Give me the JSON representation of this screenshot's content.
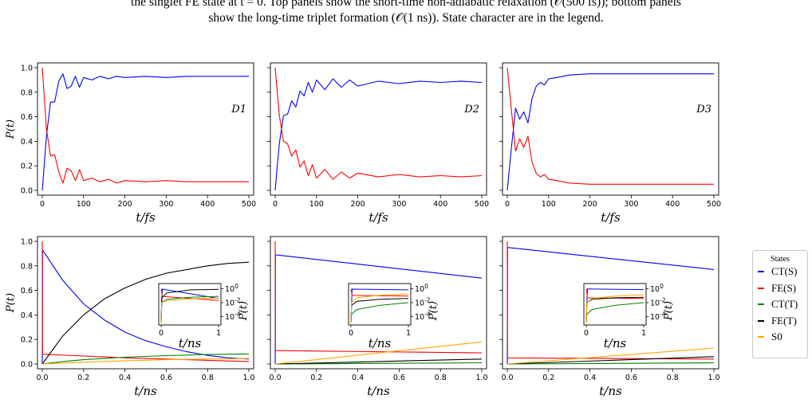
{
  "caption": {
    "line1": "the singlet FE state at t = 0. Top panels show the short-time non-adiabatic relaxation (𝒪(500 fs)); bottom panels",
    "line2": "show the long-time triplet formation (𝒪(1 ns)). State character are in the legend."
  },
  "legend": {
    "title": "States",
    "items": [
      {
        "label": "CT(S)",
        "color": "#0000ff"
      },
      {
        "label": "FE(S)",
        "color": "#ff0000"
      },
      {
        "label": "CT(T)",
        "color": "#008000"
      },
      {
        "label": "FE(T)",
        "color": "#000000"
      },
      {
        "label": "S0",
        "color": "#ffa500"
      }
    ]
  },
  "chart_data": [
    {
      "type": "line",
      "panel": "top",
      "label": "D1",
      "xlabel": "t/fs",
      "ylabel": "P(t)",
      "xlim": [
        0,
        500
      ],
      "ylim": [
        0.0,
        1.0
      ],
      "xticks": [
        0,
        100,
        200,
        300,
        400,
        500
      ],
      "yticks": [
        0.0,
        0.2,
        0.4,
        0.6,
        0.8,
        1.0
      ],
      "series": [
        {
          "color": "#0000ff",
          "x": [
            0,
            10,
            20,
            30,
            40,
            50,
            60,
            70,
            80,
            90,
            100,
            120,
            140,
            160,
            180,
            200,
            250,
            300,
            350,
            400,
            450,
            500
          ],
          "y": [
            0.0,
            0.44,
            0.72,
            0.72,
            0.89,
            0.95,
            0.83,
            0.85,
            0.93,
            0.84,
            0.92,
            0.9,
            0.93,
            0.91,
            0.93,
            0.92,
            0.93,
            0.92,
            0.93,
            0.93,
            0.93,
            0.93
          ]
        },
        {
          "color": "#ff0000",
          "x": [
            0,
            10,
            20,
            30,
            40,
            50,
            60,
            70,
            80,
            90,
            100,
            120,
            140,
            160,
            180,
            200,
            250,
            300,
            350,
            400,
            450,
            500
          ],
          "y": [
            1.0,
            0.5,
            0.28,
            0.29,
            0.15,
            0.06,
            0.18,
            0.16,
            0.08,
            0.17,
            0.08,
            0.1,
            0.07,
            0.09,
            0.06,
            0.08,
            0.07,
            0.08,
            0.07,
            0.07,
            0.07,
            0.07
          ]
        }
      ]
    },
    {
      "type": "line",
      "panel": "top",
      "label": "D2",
      "xlabel": "t/fs",
      "ylabel": "",
      "xlim": [
        0,
        500
      ],
      "ylim": [
        0.0,
        1.0
      ],
      "xticks": [
        0,
        100,
        200,
        300,
        400,
        500
      ],
      "series": [
        {
          "color": "#0000ff",
          "x": [
            0,
            5,
            10,
            20,
            30,
            40,
            50,
            60,
            70,
            80,
            90,
            100,
            120,
            140,
            160,
            180,
            200,
            250,
            300,
            350,
            400,
            450,
            500
          ],
          "y": [
            0.0,
            0.2,
            0.38,
            0.61,
            0.62,
            0.73,
            0.68,
            0.81,
            0.77,
            0.88,
            0.8,
            0.9,
            0.82,
            0.91,
            0.84,
            0.9,
            0.85,
            0.89,
            0.87,
            0.89,
            0.88,
            0.89,
            0.88
          ]
        },
        {
          "color": "#ff0000",
          "x": [
            0,
            5,
            10,
            20,
            30,
            40,
            50,
            60,
            70,
            80,
            90,
            100,
            120,
            140,
            160,
            180,
            200,
            250,
            300,
            350,
            400,
            450,
            500
          ],
          "y": [
            1.0,
            0.8,
            0.61,
            0.4,
            0.38,
            0.28,
            0.33,
            0.19,
            0.24,
            0.12,
            0.21,
            0.1,
            0.17,
            0.09,
            0.15,
            0.1,
            0.14,
            0.11,
            0.13,
            0.11,
            0.12,
            0.11,
            0.12
          ]
        }
      ]
    },
    {
      "type": "line",
      "panel": "top",
      "label": "D3",
      "xlabel": "t/fs",
      "ylabel": "",
      "xlim": [
        0,
        500
      ],
      "ylim": [
        0.0,
        1.0
      ],
      "xticks": [
        0,
        100,
        200,
        300,
        400,
        500
      ],
      "series": [
        {
          "color": "#0000ff",
          "x": [
            0,
            10,
            20,
            30,
            40,
            50,
            60,
            70,
            80,
            90,
            100,
            120,
            150,
            200,
            250,
            300,
            400,
            500
          ],
          "y": [
            0.0,
            0.35,
            0.67,
            0.58,
            0.64,
            0.55,
            0.75,
            0.85,
            0.88,
            0.86,
            0.91,
            0.92,
            0.94,
            0.95,
            0.95,
            0.95,
            0.95,
            0.95
          ]
        },
        {
          "color": "#ff0000",
          "x": [
            0,
            10,
            20,
            30,
            40,
            50,
            60,
            70,
            80,
            90,
            100,
            120,
            150,
            200,
            250,
            300,
            400,
            500
          ],
          "y": [
            1.0,
            0.65,
            0.32,
            0.42,
            0.35,
            0.44,
            0.23,
            0.14,
            0.11,
            0.13,
            0.09,
            0.08,
            0.06,
            0.05,
            0.05,
            0.05,
            0.05,
            0.05
          ]
        }
      ]
    },
    {
      "type": "line",
      "panel": "bottom",
      "label": "",
      "xlabel": "t/ns",
      "ylabel": "P(t)",
      "xlim": [
        0,
        1.0
      ],
      "ylim": [
        0.0,
        1.0
      ],
      "xticks": [
        0.0,
        0.2,
        0.4,
        0.6,
        0.8,
        1.0
      ],
      "yticks": [
        0.0,
        0.2,
        0.4,
        0.6,
        0.8,
        1.0
      ],
      "series": [
        {
          "color": "#0000ff",
          "x": [
            0,
            0.001,
            0.1,
            0.2,
            0.3,
            0.4,
            0.5,
            0.6,
            0.7,
            0.8,
            0.9,
            1.0
          ],
          "y": [
            0.0,
            0.93,
            0.68,
            0.49,
            0.36,
            0.26,
            0.19,
            0.14,
            0.1,
            0.07,
            0.05,
            0.04
          ]
        },
        {
          "color": "#ff0000",
          "x": [
            0,
            0.001,
            0.2,
            0.4,
            0.6,
            0.8,
            1.0
          ],
          "y": [
            1.0,
            0.08,
            0.065,
            0.05,
            0.04,
            0.03,
            0.02
          ]
        },
        {
          "color": "#008000",
          "x": [
            0,
            0.1,
            0.2,
            0.3,
            0.4,
            0.5,
            0.6,
            0.7,
            0.8,
            0.9,
            1.0
          ],
          "y": [
            0.0,
            0.02,
            0.035,
            0.045,
            0.055,
            0.062,
            0.068,
            0.073,
            0.077,
            0.08,
            0.082
          ]
        },
        {
          "color": "#000000",
          "x": [
            0,
            0.1,
            0.2,
            0.3,
            0.4,
            0.5,
            0.6,
            0.7,
            0.8,
            0.9,
            1.0
          ],
          "y": [
            0.0,
            0.23,
            0.4,
            0.53,
            0.62,
            0.69,
            0.74,
            0.77,
            0.8,
            0.82,
            0.83
          ]
        },
        {
          "color": "#ffa500",
          "x": [
            0,
            0.2,
            0.4,
            0.6,
            0.8,
            1.0
          ],
          "y": [
            0.0,
            0.015,
            0.025,
            0.035,
            0.04,
            0.045
          ]
        }
      ],
      "inset": {
        "type": "line",
        "scale": "log",
        "xlabel": "t/ns",
        "ylabel": "P(t)",
        "xticks": [
          0,
          1
        ],
        "yticks": [
          "10^0",
          "10^-2",
          "10^-4"
        ],
        "series": [
          {
            "color": "#0000ff",
            "x": [
              0,
              0.02,
              0.5,
              1.0
            ],
            "y": [
              1e-05,
              0.9,
              0.2,
              0.04
            ]
          },
          {
            "color": "#ff0000",
            "x": [
              0,
              0.02,
              0.5,
              1.0
            ],
            "y": [
              1.0,
              0.08,
              0.04,
              0.02
            ]
          },
          {
            "color": "#008000",
            "x": [
              0,
              0.01,
              0.1,
              0.5,
              1.0
            ],
            "y": [
              1e-05,
              0.01,
              0.03,
              0.06,
              0.08
            ]
          },
          {
            "color": "#000000",
            "x": [
              0,
              0.01,
              0.1,
              0.5,
              1.0
            ],
            "y": [
              1e-05,
              0.05,
              0.25,
              0.69,
              0.83
            ]
          },
          {
            "color": "#ffa500",
            "x": [
              0,
              0.01,
              0.1,
              0.5,
              1.0
            ],
            "y": [
              1e-05,
              0.01,
              0.02,
              0.035,
              0.045
            ]
          }
        ]
      }
    },
    {
      "type": "line",
      "panel": "bottom",
      "label": "",
      "xlabel": "t/ns",
      "ylabel": "",
      "xlim": [
        0,
        1.0
      ],
      "ylim": [
        0.0,
        1.0
      ],
      "xticks": [
        0.0,
        0.2,
        0.4,
        0.6,
        0.8,
        1.0
      ],
      "series": [
        {
          "color": "#0000ff",
          "x": [
            0,
            0.001,
            1.0
          ],
          "y": [
            0.0,
            0.89,
            0.7
          ]
        },
        {
          "color": "#ff0000",
          "x": [
            0,
            0.001,
            1.0
          ],
          "y": [
            1.0,
            0.11,
            0.09
          ]
        },
        {
          "color": "#008000",
          "x": [
            0,
            1.0
          ],
          "y": [
            0.0,
            0.01
          ]
        },
        {
          "color": "#000000",
          "x": [
            0,
            1.0
          ],
          "y": [
            0.0,
            0.04
          ]
        },
        {
          "color": "#ffa500",
          "x": [
            0,
            1.0
          ],
          "y": [
            0.0,
            0.18
          ]
        }
      ],
      "inset": {
        "type": "line",
        "scale": "log",
        "xlabel": "t/ns",
        "ylabel": "P(t)",
        "xticks": [
          0,
          1
        ],
        "yticks": [
          "10^0",
          "10^-2",
          "10^-4"
        ],
        "series": [
          {
            "color": "#0000ff",
            "x": [
              0,
              0.02,
              1.0
            ],
            "y": [
              1e-05,
              0.89,
              0.7
            ]
          },
          {
            "color": "#ff0000",
            "x": [
              0,
              0.02,
              1.0
            ],
            "y": [
              1.0,
              0.11,
              0.09
            ]
          },
          {
            "color": "#008000",
            "x": [
              0,
              0.01,
              0.1,
              0.5,
              1.0
            ],
            "y": [
              1e-05,
              0.0002,
              0.001,
              0.004,
              0.01
            ]
          },
          {
            "color": "#000000",
            "x": [
              0,
              0.01,
              0.1,
              0.5,
              1.0
            ],
            "y": [
              1e-05,
              0.004,
              0.015,
              0.03,
              0.04
            ]
          },
          {
            "color": "#ffa500",
            "x": [
              0,
              0.01,
              0.1,
              0.5,
              1.0
            ],
            "y": [
              1e-05,
              0.01,
              0.05,
              0.12,
              0.18
            ]
          }
        ]
      }
    },
    {
      "type": "line",
      "panel": "bottom",
      "label": "",
      "xlabel": "t/ns",
      "ylabel": "",
      "xlim": [
        0,
        1.0
      ],
      "ylim": [
        0.0,
        1.0
      ],
      "xticks": [
        0.0,
        0.2,
        0.4,
        0.6,
        0.8,
        1.0
      ],
      "series": [
        {
          "color": "#0000ff",
          "x": [
            0,
            0.001,
            1.0
          ],
          "y": [
            0.0,
            0.95,
            0.77
          ]
        },
        {
          "color": "#ff0000",
          "x": [
            0,
            0.001,
            1.0
          ],
          "y": [
            1.0,
            0.05,
            0.04
          ]
        },
        {
          "color": "#008000",
          "x": [
            0,
            1.0
          ],
          "y": [
            0.0,
            0.01
          ]
        },
        {
          "color": "#000000",
          "x": [
            0,
            1.0
          ],
          "y": [
            0.0,
            0.06
          ]
        },
        {
          "color": "#ffa500",
          "x": [
            0,
            1.0
          ],
          "y": [
            0.0,
            0.13
          ]
        }
      ],
      "inset": {
        "type": "line",
        "scale": "log",
        "xlabel": "t/ns",
        "ylabel": "P(t)",
        "xticks": [
          0,
          1
        ],
        "yticks": [
          "10^0",
          "10^-2",
          "10^-4"
        ],
        "series": [
          {
            "color": "#0000ff",
            "x": [
              0,
              0.02,
              1.0
            ],
            "y": [
              1e-05,
              0.95,
              0.77
            ]
          },
          {
            "color": "#ff0000",
            "x": [
              0,
              0.02,
              1.0
            ],
            "y": [
              1.0,
              0.05,
              0.04
            ]
          },
          {
            "color": "#008000",
            "x": [
              0,
              0.01,
              0.1,
              0.5,
              1.0
            ],
            "y": [
              1e-05,
              0.0002,
              0.001,
              0.004,
              0.01
            ]
          },
          {
            "color": "#000000",
            "x": [
              0,
              0.01,
              0.1,
              0.5,
              1.0
            ],
            "y": [
              1e-05,
              0.01,
              0.03,
              0.05,
              0.06
            ]
          },
          {
            "color": "#ffa500",
            "x": [
              0,
              0.01,
              0.1,
              0.5,
              1.0
            ],
            "y": [
              1e-05,
              0.01,
              0.04,
              0.09,
              0.13
            ]
          }
        ]
      }
    }
  ]
}
